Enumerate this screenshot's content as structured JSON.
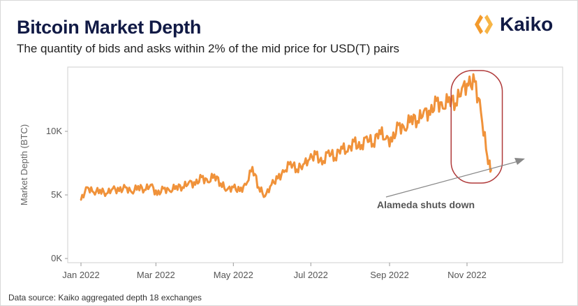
{
  "header": {
    "title": "Bitcoin Market Depth",
    "subtitle": "The quantity of bids and asks within 2% of the mid price for USD(T) pairs",
    "logo": "Kaiko"
  },
  "footer": {
    "source": "Data source: Kaiko aggregated depth 18 exchanges"
  },
  "colors": {
    "line": "#f0923a",
    "title": "#111a45",
    "highlight": "#b03a3a",
    "arrow": "#888888"
  },
  "chart_data": {
    "type": "line",
    "title": "Bitcoin Market Depth",
    "subtitle": "The quantity of bids and asks within 2% of the mid price for USD(T) pairs",
    "xlabel": "",
    "ylabel": "Market Depth (BTC)",
    "ylim": [
      0,
      15000
    ],
    "yticks": [
      {
        "value": 0,
        "label": "0K"
      },
      {
        "value": 5000,
        "label": "5K"
      },
      {
        "value": 10000,
        "label": "10K"
      }
    ],
    "xticks": [
      {
        "date": "2022-01-01",
        "label": "Jan 2022"
      },
      {
        "date": "2022-03-01",
        "label": "Mar 2022"
      },
      {
        "date": "2022-05-01",
        "label": "May 2022"
      },
      {
        "date": "2022-07-01",
        "label": "Jul 2022"
      },
      {
        "date": "2022-09-01",
        "label": "Sep 2022"
      },
      {
        "date": "2022-11-01",
        "label": "Nov 2022"
      }
    ],
    "grid": false,
    "annotation": {
      "text": "Alameda shuts down",
      "highlight_start": "2022-10-25",
      "highlight_end": "2022-11-20"
    },
    "x": [
      "2022-01-01",
      "2022-01-06",
      "2022-01-11",
      "2022-01-16",
      "2022-01-21",
      "2022-01-26",
      "2022-01-31",
      "2022-02-05",
      "2022-02-10",
      "2022-02-15",
      "2022-02-20",
      "2022-02-25",
      "2022-03-02",
      "2022-03-07",
      "2022-03-12",
      "2022-03-17",
      "2022-03-22",
      "2022-03-27",
      "2022-04-01",
      "2022-04-06",
      "2022-04-11",
      "2022-04-16",
      "2022-04-21",
      "2022-04-26",
      "2022-05-01",
      "2022-05-06",
      "2022-05-11",
      "2022-05-16",
      "2022-05-21",
      "2022-05-26",
      "2022-05-31",
      "2022-06-05",
      "2022-06-10",
      "2022-06-15",
      "2022-06-20",
      "2022-06-25",
      "2022-06-30",
      "2022-07-05",
      "2022-07-10",
      "2022-07-15",
      "2022-07-20",
      "2022-07-25",
      "2022-07-30",
      "2022-08-04",
      "2022-08-09",
      "2022-08-14",
      "2022-08-19",
      "2022-08-24",
      "2022-08-29",
      "2022-09-03",
      "2022-09-08",
      "2022-09-13",
      "2022-09-18",
      "2022-09-23",
      "2022-09-28",
      "2022-10-03",
      "2022-10-08",
      "2022-10-13",
      "2022-10-18",
      "2022-10-23",
      "2022-10-28",
      "2022-11-02",
      "2022-11-07",
      "2022-11-12",
      "2022-11-17",
      "2022-11-20"
    ],
    "values": [
      4600,
      5600,
      5200,
      5400,
      5100,
      5500,
      5300,
      5600,
      5200,
      5700,
      5400,
      5800,
      5000,
      5500,
      5300,
      5700,
      5600,
      6000,
      5800,
      6400,
      6000,
      6600,
      5900,
      5400,
      5600,
      5300,
      5800,
      7200,
      5600,
      4900,
      5800,
      6300,
      6800,
      7600,
      7000,
      7400,
      7800,
      8200,
      7400,
      8500,
      7900,
      8800,
      8400,
      9200,
      8600,
      9600,
      9000,
      10100,
      9400,
      9200,
      10500,
      10100,
      11200,
      10800,
      11600,
      11300,
      12400,
      11800,
      12700,
      12200,
      13400,
      13600,
      13900,
      11500,
      8000,
      7000
    ]
  }
}
